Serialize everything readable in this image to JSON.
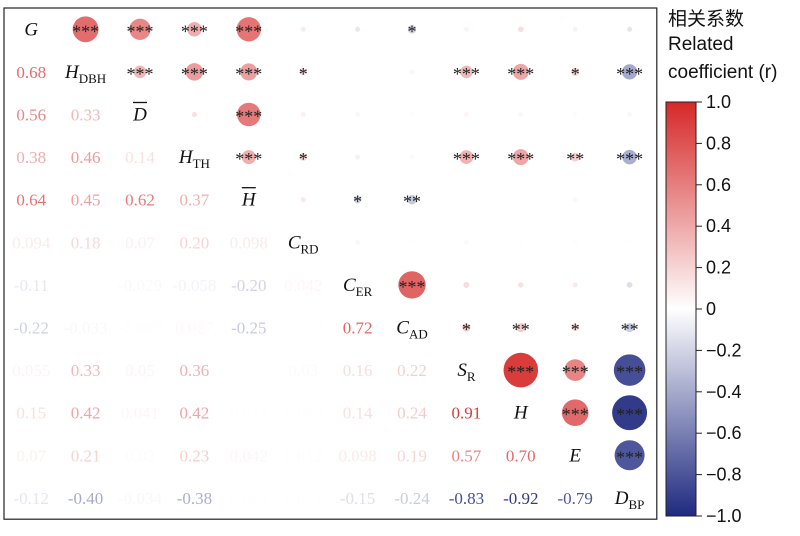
{
  "chart_data": {
    "type": "heatmap",
    "subtype": "correlation-matrix",
    "variables": [
      {
        "base": "G",
        "sub": "",
        "overline": false
      },
      {
        "base": "H",
        "sub": "DBH",
        "overline": false
      },
      {
        "base": "D",
        "sub": "",
        "overline": true
      },
      {
        "base": "H",
        "sub": "TH",
        "overline": false
      },
      {
        "base": "H",
        "sub": "",
        "overline": true
      },
      {
        "base": "C",
        "sub": "RD",
        "overline": false
      },
      {
        "base": "C",
        "sub": "ER",
        "overline": false
      },
      {
        "base": "C",
        "sub": "AD",
        "overline": false
      },
      {
        "base": "S",
        "sub": "R",
        "overline": false
      },
      {
        "base": "H",
        "sub": "",
        "overline": false
      },
      {
        "base": "E",
        "sub": "",
        "overline": false
      },
      {
        "base": "D",
        "sub": "BP",
        "overline": false
      }
    ],
    "lower_labels": [
      [],
      [
        "0.68"
      ],
      [
        "0.56",
        "0.33"
      ],
      [
        "0.38",
        "0.46",
        "0.14"
      ],
      [
        "0.64",
        "0.45",
        "0.62",
        "0.37"
      ],
      [
        "0.094",
        "0.18",
        "0.07",
        "0.20",
        "0.098"
      ],
      [
        "-0.11",
        "",
        "-0.029",
        "-0.058",
        "-0.20",
        "0.042"
      ],
      [
        "-0.22",
        "-0.033",
        "-0.009",
        "0.027",
        "-0.25",
        "-0.003",
        "0.72"
      ],
      [
        "0.055",
        "0.33",
        "0.05",
        "0.36",
        "",
        "0.03",
        "0.16",
        "0.22"
      ],
      [
        "0.15",
        "0.42",
        "0.041",
        "0.42",
        "0.011",
        "0.004",
        "0.14",
        "0.24",
        "0.91"
      ],
      [
        "0.07",
        "0.21",
        "0.02",
        "0.23",
        "0.042",
        "0.012",
        "0.098",
        "0.19",
        "0.57",
        "0.70"
      ],
      [
        "-0.12",
        "-0.40",
        "-0.034",
        "-0.38",
        "0.003",
        "0.011",
        "-0.15",
        "-0.24",
        "-0.83",
        "-0.92",
        "-0.79"
      ]
    ],
    "lower_values": [
      [],
      [
        0.68
      ],
      [
        0.56,
        0.33
      ],
      [
        0.38,
        0.46,
        0.14
      ],
      [
        0.64,
        0.45,
        0.62,
        0.37
      ],
      [
        0.094,
        0.18,
        0.07,
        0.2,
        0.098
      ],
      [
        -0.11,
        0.005,
        -0.029,
        -0.058,
        -0.2,
        0.042
      ],
      [
        -0.22,
        -0.033,
        -0.009,
        0.027,
        -0.25,
        -0.003,
        0.72
      ],
      [
        0.055,
        0.33,
        0.05,
        0.36,
        0.005,
        0.03,
        0.16,
        0.22
      ],
      [
        0.15,
        0.42,
        0.041,
        0.42,
        0.011,
        0.004,
        0.14,
        0.24,
        0.91
      ],
      [
        0.07,
        0.21,
        0.02,
        0.23,
        0.042,
        0.012,
        0.098,
        0.19,
        0.57,
        0.7
      ],
      [
        -0.12,
        -0.4,
        -0.034,
        -0.38,
        0.003,
        0.011,
        -0.15,
        -0.24,
        -0.83,
        -0.92,
        -0.79
      ]
    ],
    "significance": [
      [
        "",
        "***",
        "***",
        "***",
        "***",
        "",
        "",
        "*",
        "",
        "",
        "",
        ""
      ],
      [
        "",
        "",
        "***",
        "***",
        "***",
        "*",
        "",
        "",
        "***",
        "***",
        "*",
        "***"
      ],
      [
        "",
        "",
        "",
        "",
        "***",
        "",
        "",
        "",
        "",
        "",
        "",
        ""
      ],
      [
        "",
        "",
        "",
        "",
        "***",
        "*",
        "",
        "",
        "***",
        "***",
        "**",
        "***"
      ],
      [
        "",
        "",
        "",
        "",
        "",
        "",
        "*",
        "**",
        "",
        "",
        "",
        ""
      ],
      [
        "",
        "",
        "",
        "",
        "",
        "",
        "",
        "",
        "",
        "",
        "",
        ""
      ],
      [
        "",
        "",
        "",
        "",
        "",
        "",
        "",
        "***",
        "",
        "",
        "",
        ""
      ],
      [
        "",
        "",
        "",
        "",
        "",
        "",
        "",
        "",
        "*",
        "**",
        "*",
        "**"
      ],
      [
        "",
        "",
        "",
        "",
        "",
        "",
        "",
        "",
        "",
        "***",
        "***",
        "***"
      ],
      [
        "",
        "",
        "",
        "",
        "",
        "",
        "",
        "",
        "",
        "",
        "***",
        "***"
      ],
      [
        "",
        "",
        "",
        "",
        "",
        "",
        "",
        "",
        "",
        "",
        "",
        "***"
      ],
      [
        "",
        "",
        "",
        "",
        "",
        "",
        "",
        "",
        "",
        "",
        "",
        ""
      ]
    ],
    "colorbar": {
      "title_cn": "相关系数",
      "title_en_1": "Related",
      "title_en_2": "coefficient (r)",
      "ticks": [
        1.0,
        0.8,
        0.6,
        0.4,
        0.2,
        0.0,
        -0.2,
        -0.4,
        -0.6,
        -0.8,
        -1.0
      ],
      "tick_labels": [
        "1.0",
        "0.8",
        "0.6",
        "0.4",
        "0.2",
        "0",
        "−0.2",
        "−0.4",
        "−0.6",
        "−0.8",
        "−1.0"
      ],
      "range": [
        -1.0,
        1.0
      ],
      "colors": {
        "positive": "#d62828",
        "neutral": "#ffffff",
        "negative": "#1f2a80"
      }
    }
  }
}
